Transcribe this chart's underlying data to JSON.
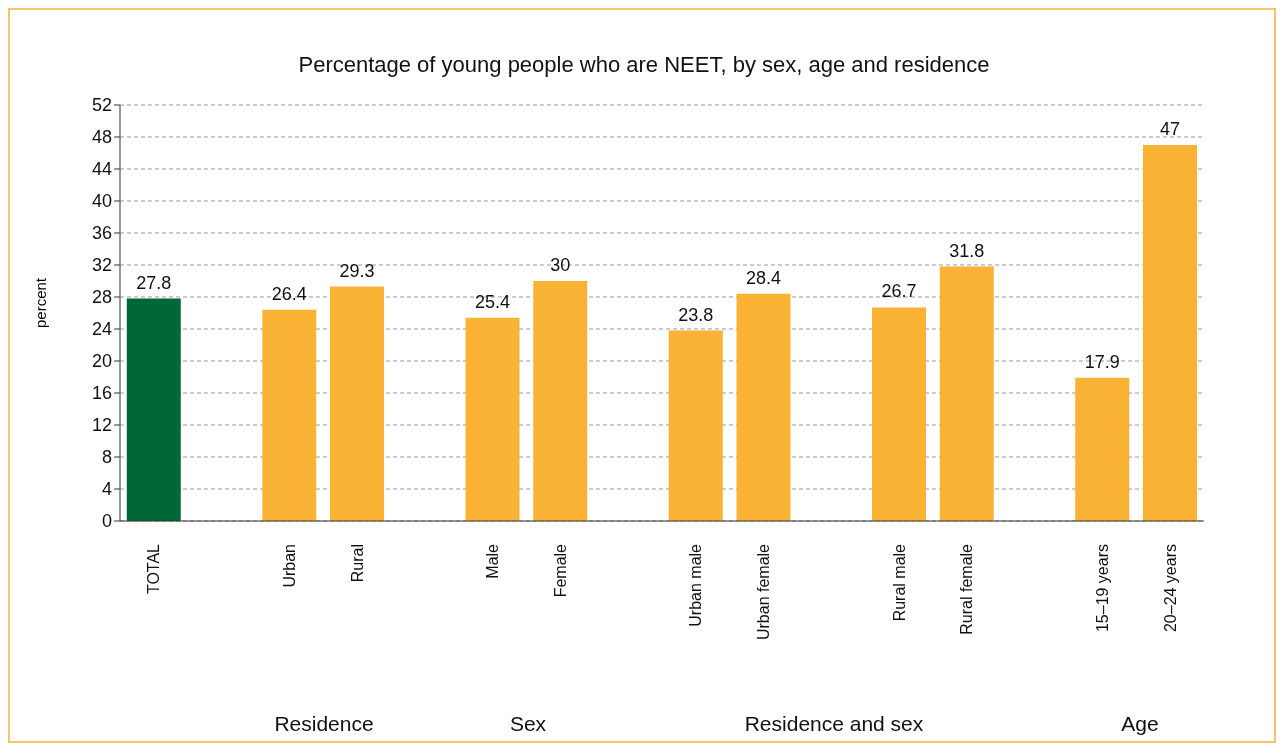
{
  "chart_data": {
    "type": "bar",
    "title": "Percentage of young people who are NEET, by sex, age and residence",
    "ylabel": "percent",
    "categories": [
      "TOTAL",
      null,
      "Urban",
      "Rural",
      null,
      "Male",
      "Female",
      null,
      "Urban male",
      "Urban female",
      null,
      "Rural male",
      "Rural female",
      null,
      "15–19 years",
      "20–24 years"
    ],
    "values": [
      27.8,
      null,
      26.4,
      29.3,
      null,
      25.4,
      30,
      null,
      23.8,
      28.4,
      null,
      26.7,
      31.8,
      null,
      17.9,
      47
    ],
    "colors": [
      "#006837",
      null,
      "#f9b233",
      "#f9b233",
      null,
      "#f9b233",
      "#f9b233",
      null,
      "#f9b233",
      "#f9b233",
      null,
      "#f9b233",
      "#f9b233",
      null,
      "#f9b233",
      "#f9b233"
    ],
    "ylim": [
      0,
      52
    ],
    "yticks": [
      0,
      4,
      8,
      12,
      16,
      20,
      24,
      28,
      32,
      36,
      40,
      44,
      48,
      52
    ],
    "grid": "y",
    "data_labels": true,
    "annotations": [
      "Residence",
      "Sex",
      "Residence and sex",
      "Age"
    ]
  }
}
